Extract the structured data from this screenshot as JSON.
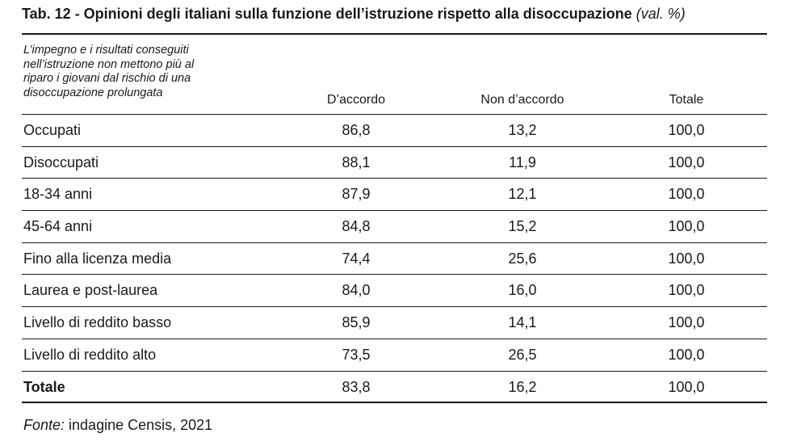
{
  "title": {
    "main": "Tab. 12 - Opinioni degli italiani sulla funzione dell’istruzione rispetto alla disoccupazione",
    "note": "(val. %)"
  },
  "table": {
    "stub_header": "L’impegno e i risultati conseguiti\nnell’istruzione non mettono più al\nriparo i giovani dal rischio di una\ndisoccupazione prolungata",
    "columns": [
      "D’accordo",
      "Non d’accordo",
      "Totale"
    ],
    "rows": [
      {
        "label": "Occupati",
        "values": [
          "86,8",
          "13,2",
          "100,0"
        ]
      },
      {
        "label": "Disoccupati",
        "values": [
          "88,1",
          "11,9",
          "100,0"
        ]
      },
      {
        "label": "18-34 anni",
        "values": [
          "87,9",
          "12,1",
          "100,0"
        ]
      },
      {
        "label": "45-64 anni",
        "values": [
          "84,8",
          "15,2",
          "100,0"
        ]
      },
      {
        "label": "Fino alla licenza media",
        "values": [
          "74,4",
          "25,6",
          "100,0"
        ]
      },
      {
        "label": "Laurea e post-laurea",
        "values": [
          "84,0",
          "16,0",
          "100,0"
        ]
      },
      {
        "label": "Livello di reddito basso",
        "values": [
          "85,9",
          "14,1",
          "100,0"
        ]
      },
      {
        "label": "Livello di reddito alto",
        "values": [
          "73,5",
          "26,5",
          "100,0"
        ]
      },
      {
        "label": "Totale",
        "values": [
          "83,8",
          "16,2",
          "100,0"
        ]
      }
    ]
  },
  "source": {
    "label": "Fonte:",
    "text": " indagine Censis, 2021"
  }
}
